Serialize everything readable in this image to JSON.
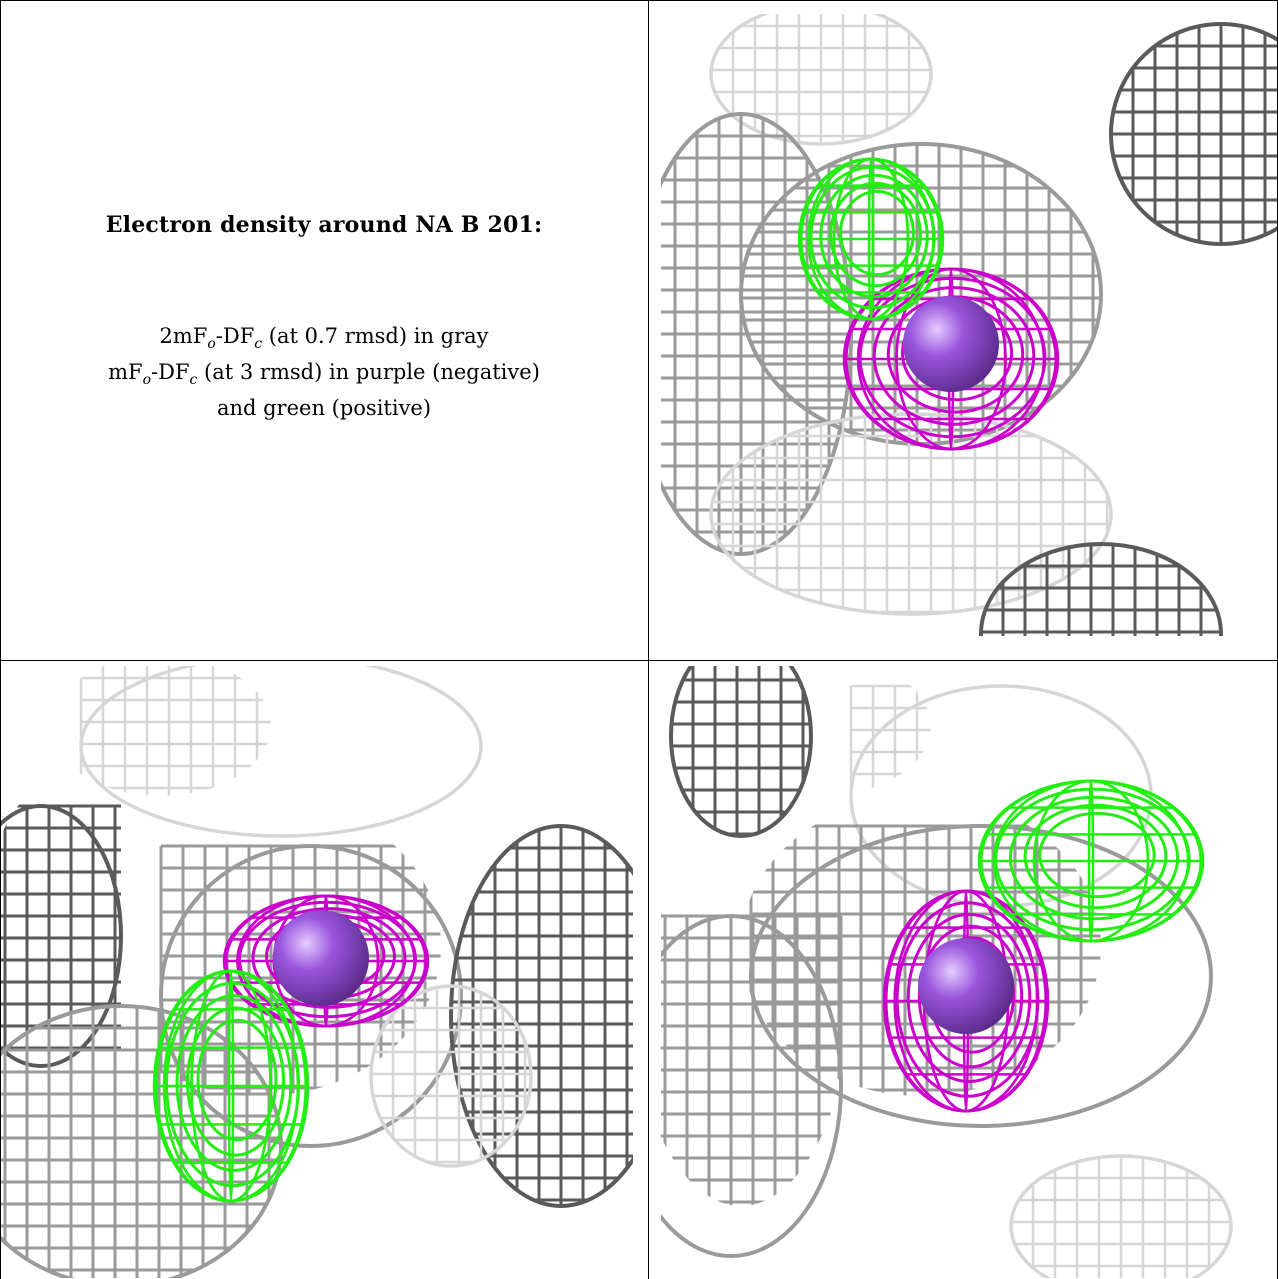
{
  "legend": {
    "title": "Electron density around NA B 201:",
    "line1": {
      "a": "2mF",
      "b": "o",
      "c": "-DF",
      "d": "c",
      "e": " (at 0.7 rmsd) in gray"
    },
    "line2": {
      "a": "mF",
      "b": "o",
      "c": "-DF",
      "d": "c",
      "e": " (at 3 rmsd) in purple (negative)"
    },
    "line3": "and green (positive)"
  },
  "colors": {
    "gray_mesh_dark": "#5a5a5a",
    "gray_mesh_mid": "#9a9a9a",
    "gray_mesh_light": "#d6d6d6",
    "negative_mesh": "#cc00cc",
    "positive_mesh": "#22ee11",
    "sodium_atom": "#9955dd"
  },
  "panels": [
    {
      "id": "view-top-right",
      "icon": "density-mesh-view"
    },
    {
      "id": "view-bottom-left",
      "icon": "density-mesh-view"
    },
    {
      "id": "view-bottom-right",
      "icon": "density-mesh-view"
    }
  ]
}
